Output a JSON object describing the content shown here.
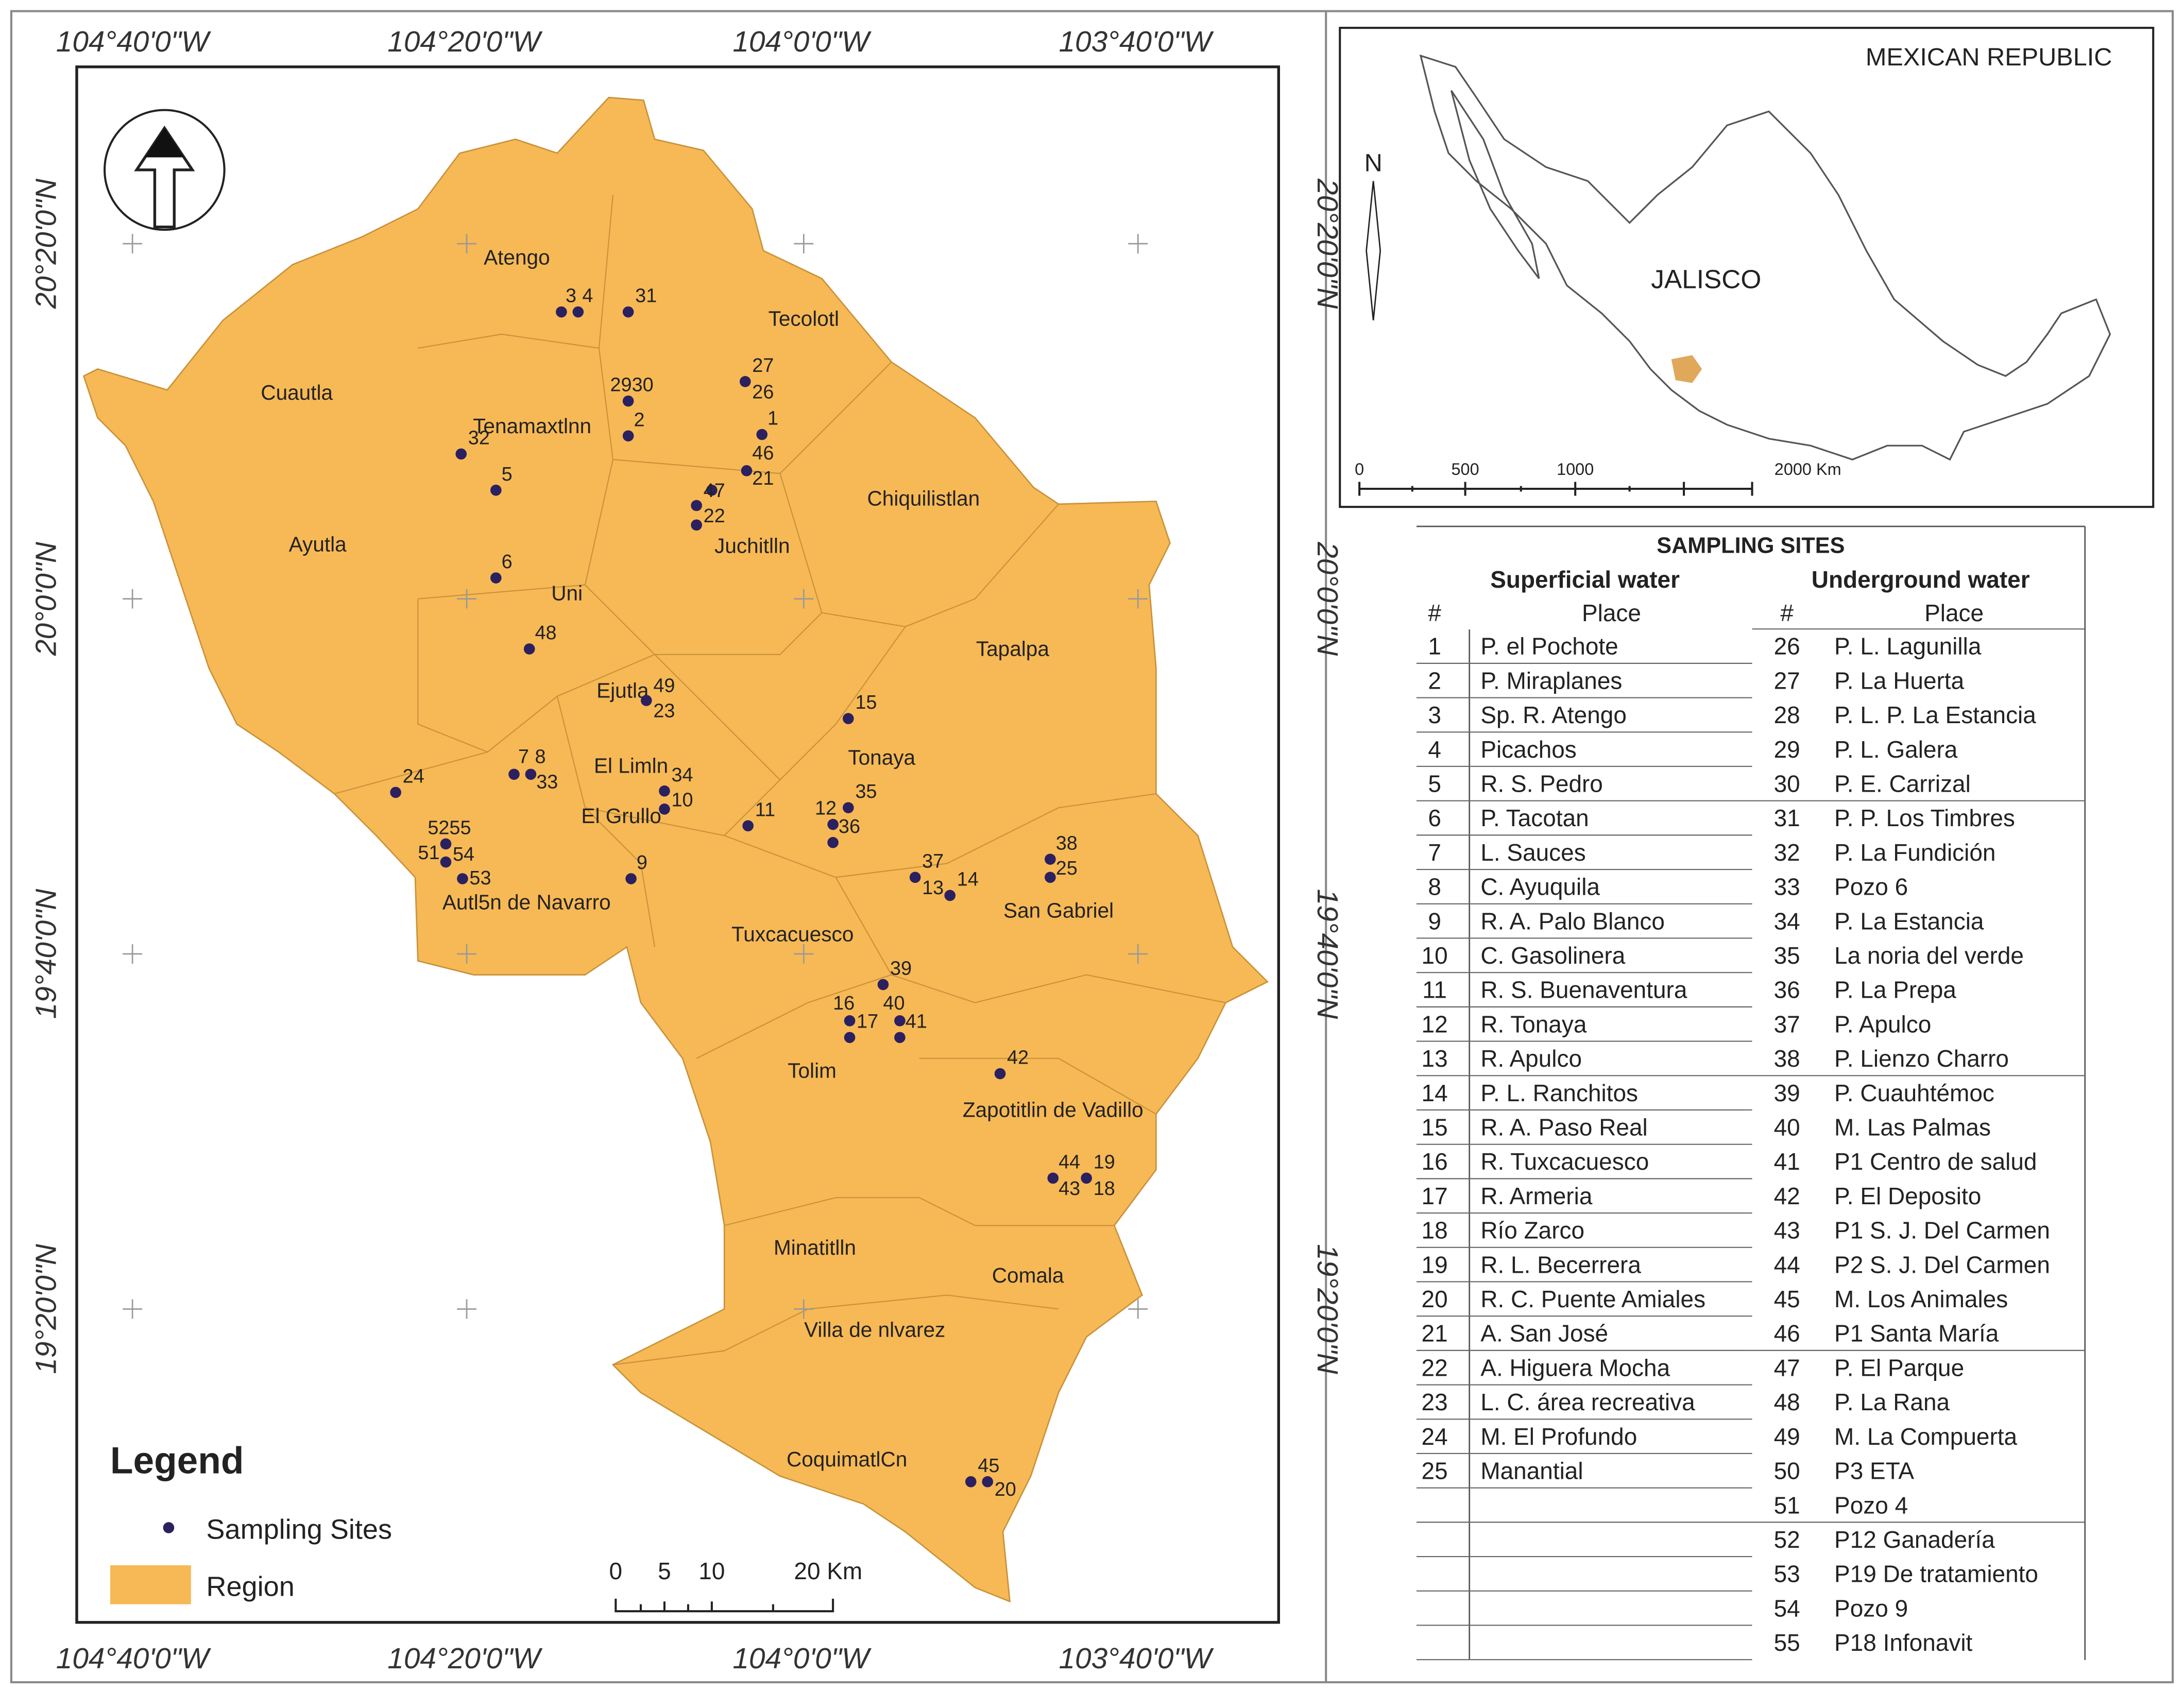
{
  "map": {
    "lon_labels": [
      "104°40'0\"W",
      "104°20'0\"W",
      "104°0'0\"W",
      "103°40'0\"W"
    ],
    "lat_labels": [
      "20°20'0\"N",
      "20°0'0\"N",
      "19°40'0\"N",
      "19°20'0\"N"
    ],
    "regions": [
      "Atengo",
      "Cuautla",
      "Tecolotl",
      "Tenamaxtlnn",
      "Chiquilistlan",
      "Ayutla",
      "Juchitlln",
      "Uni",
      "Tapalpa",
      "Ejutla",
      "Tonaya",
      "El Limln",
      "El Grullo",
      "Autl5n de Navarro",
      "Tuxcacuesco",
      "San Gabriel",
      "Tolim",
      "Zapotitlin de Vadillo",
      "Minatitlln",
      "Comala",
      "Villa de nlvarez",
      "CoquimatlCn"
    ],
    "site_labels": [
      "3",
      "4",
      "31",
      "2930",
      "2",
      "27",
      "26",
      "1",
      "46",
      "21",
      "47",
      "22",
      "32",
      "5",
      "6",
      "48",
      "49",
      "23",
      "15",
      "7",
      "8",
      "33",
      "24",
      "34",
      "10",
      "11",
      "12",
      "35",
      "36",
      "5255",
      "51",
      "54",
      "53",
      "9",
      "37",
      "13",
      "14",
      "38",
      "25",
      "39",
      "16",
      "17",
      "40",
      "41",
      "42",
      "44",
      "43",
      "19",
      "18",
      "45",
      "20"
    ],
    "legend": {
      "title": "Legend",
      "items": [
        "Sampling Sites",
        "Region"
      ]
    },
    "scale_labels": [
      "0",
      "5",
      "10",
      "20 Km"
    ]
  },
  "inset": {
    "title": "MEXICAN REPUBLIC",
    "north": "N",
    "state": "JALISCO",
    "scale_labels": [
      "0",
      "500",
      "1000",
      "2000 Km"
    ]
  },
  "table": {
    "title": "SAMPLING SITES",
    "groups": [
      "Superficial water",
      "Underground water"
    ],
    "columns": [
      "#",
      "Place",
      "#",
      "Place"
    ],
    "superficial": [
      [
        1,
        "P. el Pochote"
      ],
      [
        2,
        "P. Miraplanes"
      ],
      [
        3,
        "Sp. R. Atengo"
      ],
      [
        4,
        "Picachos"
      ],
      [
        5,
        "R. S. Pedro"
      ],
      [
        6,
        "P. Tacotan"
      ],
      [
        7,
        "L. Sauces"
      ],
      [
        8,
        "C. Ayuquila"
      ],
      [
        9,
        "R. A. Palo Blanco"
      ],
      [
        10,
        "C. Gasolinera"
      ],
      [
        11,
        "R. S. Buenaventura"
      ],
      [
        12,
        "R. Tonaya"
      ],
      [
        13,
        "R. Apulco"
      ],
      [
        14,
        "P. L. Ranchitos"
      ],
      [
        15,
        "R. A. Paso Real"
      ],
      [
        16,
        "R. Tuxcacuesco"
      ],
      [
        17,
        "R. Armeria"
      ],
      [
        18,
        "Río Zarco"
      ],
      [
        19,
        "R. L. Becerrera"
      ],
      [
        20,
        "R. C. Puente Amiales"
      ],
      [
        21,
        "A. San José"
      ],
      [
        22,
        "A. Higuera Mocha"
      ],
      [
        23,
        "L. C. área recreativa"
      ],
      [
        24,
        "M. El Profundo"
      ],
      [
        25,
        "Manantial"
      ]
    ],
    "underground": [
      [
        26,
        "P. L. Lagunilla"
      ],
      [
        27,
        "P. La Huerta"
      ],
      [
        28,
        "P. L. P. La Estancia"
      ],
      [
        29,
        "P. L. Galera"
      ],
      [
        30,
        "P. E. Carrizal"
      ],
      [
        31,
        "P. P. Los Timbres"
      ],
      [
        32,
        "P. La Fundición"
      ],
      [
        33,
        "Pozo 6"
      ],
      [
        34,
        "P. La Estancia"
      ],
      [
        35,
        "La noria del verde"
      ],
      [
        36,
        "P. La Prepa"
      ],
      [
        37,
        "P. Apulco"
      ],
      [
        38,
        "P. Lienzo Charro"
      ],
      [
        39,
        "P. Cuauhtémoc"
      ],
      [
        40,
        "M. Las Palmas"
      ],
      [
        41,
        "P1 Centro de salud"
      ],
      [
        42,
        "P. El Deposito"
      ],
      [
        43,
        "P1 S. J. Del Carmen"
      ],
      [
        44,
        "P2 S. J. Del Carmen"
      ],
      [
        45,
        "M. Los Animales"
      ],
      [
        46,
        "P1 Santa María"
      ],
      [
        47,
        "P. El Parque"
      ],
      [
        48,
        "P. La Rana"
      ],
      [
        49,
        "M. La Compuerta"
      ],
      [
        50,
        "P3 ETA"
      ],
      [
        51,
        "Pozo 4"
      ],
      [
        52,
        "P12 Ganadería"
      ],
      [
        53,
        "P19 De tratamiento"
      ],
      [
        54,
        "Pozo 9"
      ],
      [
        55,
        "P18 Infonavit"
      ]
    ]
  }
}
